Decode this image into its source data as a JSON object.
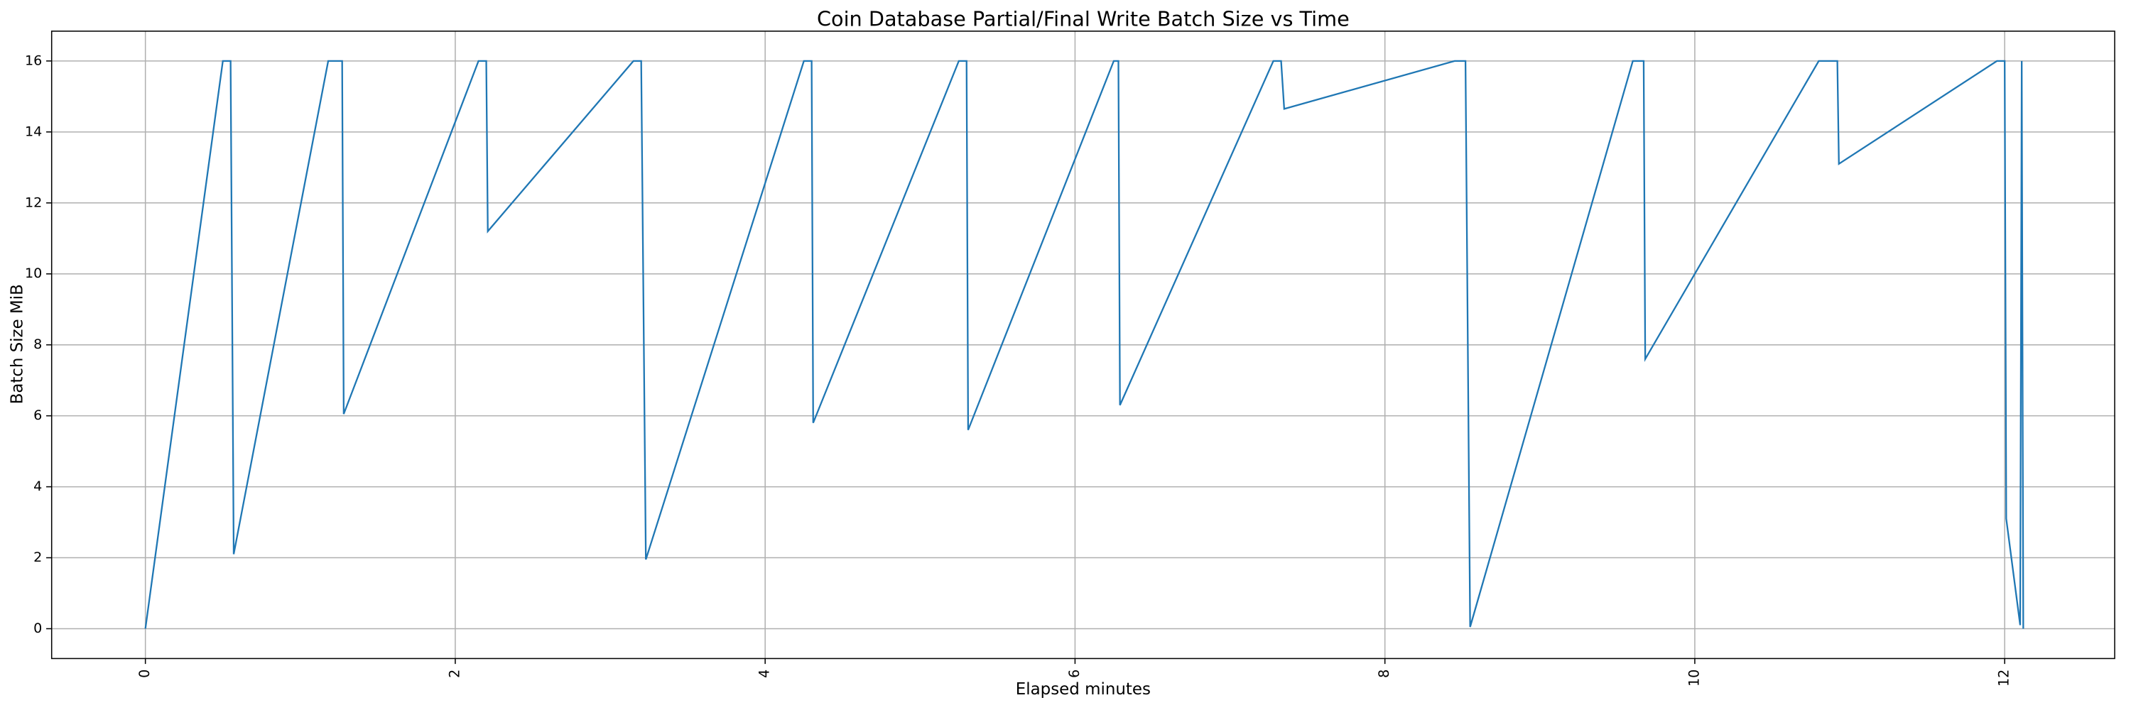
{
  "chart_data": {
    "type": "line",
    "title": "Coin Database Partial/Final Write Batch Size vs Time",
    "x_label": "Elapsed minutes",
    "y_label": "Batch Size MiB",
    "x": [
      0,
      0.5,
      0.55,
      0.57,
      1.18,
      1.27,
      1.28,
      2.15,
      2.2,
      2.21,
      3.15,
      3.2,
      3.23,
      4.25,
      4.3,
      4.31,
      5.25,
      5.3,
      5.31,
      6.25,
      6.28,
      6.29,
      7.28,
      7.33,
      7.35,
      8.45,
      8.52,
      8.55,
      9.6,
      9.67,
      9.68,
      10.8,
      10.92,
      10.93,
      11.95,
      12.0,
      12.01,
      12.1,
      12.11,
      12.12
    ],
    "series": [
      {
        "name": "Batch Size MiB",
        "color": "#1f77b4",
        "values": [
          0,
          16,
          16,
          2.1,
          16,
          16,
          6.05,
          16,
          16,
          11.2,
          16,
          16,
          1.95,
          16,
          16,
          5.8,
          16,
          16,
          5.6,
          16,
          16,
          6.3,
          16,
          16,
          14.65,
          16,
          16,
          0.05,
          16,
          16,
          7.6,
          16,
          16,
          13.1,
          16,
          16,
          3.1,
          0.1,
          16,
          0
        ]
      }
    ],
    "xlim": [
      -0.605,
      12.71
    ],
    "ylim": [
      -0.84,
      16.84
    ],
    "xticks": [
      0,
      2,
      4,
      6,
      8,
      10,
      12
    ],
    "yticks": [
      0,
      2,
      4,
      6,
      8,
      10,
      12,
      14,
      16
    ],
    "grid": true
  }
}
